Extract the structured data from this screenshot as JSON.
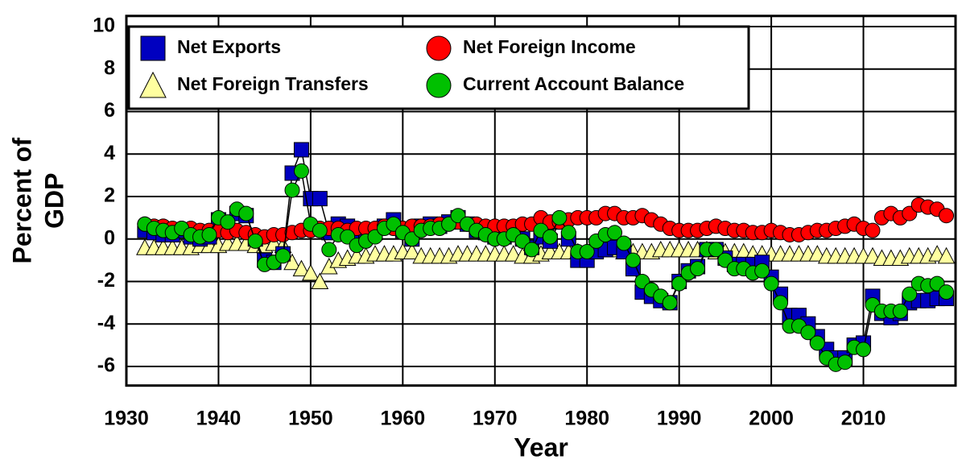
{
  "chart_data": {
    "type": "scatter",
    "xlabel": "Year",
    "ylabel": [
      "Percent of",
      "GDP"
    ],
    "xlim": [
      1930,
      2020
    ],
    "xticks": [
      1930,
      1940,
      1950,
      1960,
      1970,
      1980,
      1990,
      2000,
      2010
    ],
    "ylim": [
      -6.9,
      10.5
    ],
    "yticks": [
      -6,
      -4,
      -2,
      0,
      2,
      4,
      6,
      8,
      10
    ],
    "grid": true,
    "legend": "upper left",
    "x": [
      1932,
      1933,
      1934,
      1935,
      1936,
      1937,
      1938,
      1939,
      1940,
      1941,
      1942,
      1943,
      1944,
      1945,
      1946,
      1947,
      1948,
      1949,
      1950,
      1951,
      1952,
      1953,
      1954,
      1955,
      1956,
      1957,
      1958,
      1959,
      1960,
      1961,
      1962,
      1963,
      1964,
      1965,
      1966,
      1967,
      1968,
      1969,
      1970,
      1971,
      1972,
      1973,
      1974,
      1975,
      1976,
      1977,
      1978,
      1979,
      1980,
      1981,
      1982,
      1983,
      1984,
      1985,
      1986,
      1987,
      1988,
      1989,
      1990,
      1991,
      1992,
      1993,
      1994,
      1995,
      1996,
      1997,
      1998,
      1999,
      2000,
      2001,
      2002,
      2003,
      2004,
      2005,
      2006,
      2007,
      2008,
      2009,
      2010,
      2011,
      2012,
      2013,
      2014,
      2015,
      2016,
      2017,
      2018,
      2019
    ],
    "series": [
      {
        "name": "Net Foreign Transfers",
        "color": "#ffffa0",
        "marker": "triangle",
        "values": [
          -0.4,
          -0.4,
          -0.4,
          -0.4,
          -0.4,
          -0.4,
          -0.3,
          -0.3,
          -0.3,
          -0.2,
          -0.2,
          -0.2,
          -0.3,
          -0.3,
          -0.2,
          -0.3,
          -1.1,
          -1.4,
          -1.6,
          -2.0,
          -1.3,
          -1.0,
          -0.9,
          -0.8,
          -0.8,
          -0.7,
          -0.7,
          -0.7,
          -0.6,
          -0.6,
          -0.8,
          -0.8,
          -0.8,
          -0.8,
          -0.7,
          -0.7,
          -0.7,
          -0.7,
          -0.7,
          -0.7,
          -0.7,
          -0.8,
          -0.8,
          -0.7,
          -0.6,
          -0.6,
          -0.6,
          -0.6,
          -0.6,
          -0.5,
          -0.5,
          -0.5,
          -0.6,
          -0.6,
          -0.6,
          -0.6,
          -0.5,
          -0.5,
          -0.5,
          -0.5,
          -0.5,
          -0.5,
          -0.6,
          -0.6,
          -0.6,
          -0.6,
          -0.7,
          -0.7,
          -0.7,
          -0.7,
          -0.7,
          -0.7,
          -0.7,
          -0.7,
          -0.8,
          -0.8,
          -0.8,
          -0.8,
          -0.8,
          -0.8,
          -0.9,
          -0.9,
          -0.9,
          -0.8,
          -0.8,
          -0.8,
          -0.7,
          -0.8
        ]
      },
      {
        "name": "Net Exports",
        "color": "#0000c0",
        "marker": "square",
        "values": [
          0.4,
          0.3,
          0.2,
          0.2,
          0.4,
          0.1,
          0.0,
          0.1,
          0.9,
          0.7,
          1.2,
          1.1,
          0.0,
          -1.0,
          -1.1,
          -0.7,
          3.1,
          4.2,
          1.9,
          1.9,
          0.3,
          0.7,
          0.6,
          0.0,
          0.2,
          0.3,
          0.6,
          0.9,
          0.4,
          0.0,
          0.6,
          0.7,
          0.6,
          0.8,
          1.0,
          0.7,
          0.4,
          0.3,
          0.1,
          0.1,
          0.3,
          0.0,
          -0.4,
          0.1,
          -0.1,
          0.8,
          0.0,
          -1.0,
          -1.0,
          -0.6,
          -0.5,
          -0.4,
          -0.6,
          -1.4,
          -2.5,
          -2.7,
          -2.9,
          -3.0,
          -2.0,
          -1.5,
          -1.3,
          -0.5,
          -0.5,
          -0.9,
          -1.2,
          -1.2,
          -1.2,
          -1.1,
          -1.8,
          -2.6,
          -3.6,
          -3.6,
          -4.0,
          -4.6,
          -5.2,
          -5.6,
          -5.6,
          -5.0,
          -4.9,
          -2.7,
          -3.5,
          -3.7,
          -3.5,
          -3.0,
          -2.9,
          -2.9,
          -2.8,
          -2.8
        ]
      },
      {
        "name": "Net Foreign Income",
        "color": "#ff0000",
        "marker": "circle",
        "values": [
          0.7,
          0.6,
          0.6,
          0.5,
          0.5,
          0.5,
          0.4,
          0.4,
          0.4,
          0.3,
          0.4,
          0.3,
          0.2,
          0.1,
          0.2,
          0.2,
          0.3,
          0.4,
          0.4,
          0.5,
          0.5,
          0.5,
          0.4,
          0.5,
          0.5,
          0.5,
          0.6,
          0.5,
          0.5,
          0.6,
          0.6,
          0.6,
          0.7,
          0.7,
          0.8,
          0.7,
          0.7,
          0.6,
          0.6,
          0.6,
          0.6,
          0.7,
          0.7,
          1.0,
          0.8,
          0.8,
          0.9,
          1.0,
          1.0,
          1.0,
          1.2,
          1.2,
          1.0,
          1.0,
          1.1,
          0.9,
          0.7,
          0.5,
          0.4,
          0.4,
          0.4,
          0.5,
          0.6,
          0.5,
          0.4,
          0.4,
          0.3,
          0.3,
          0.4,
          0.3,
          0.2,
          0.2,
          0.3,
          0.4,
          0.4,
          0.5,
          0.6,
          0.7,
          0.5,
          0.4,
          1.0,
          1.2,
          1.0,
          1.2,
          1.6,
          1.5,
          1.4,
          1.1
        ]
      },
      {
        "name": "Current Account Balance",
        "color": "#00c000",
        "marker": "circle",
        "values": [
          0.7,
          0.5,
          0.4,
          0.3,
          0.5,
          0.2,
          0.1,
          0.2,
          1.0,
          0.8,
          1.4,
          1.2,
          -0.1,
          -1.2,
          -1.1,
          -0.8,
          2.3,
          3.2,
          0.7,
          0.4,
          -0.5,
          0.2,
          0.1,
          -0.3,
          -0.1,
          0.1,
          0.5,
          0.7,
          0.3,
          0.0,
          0.4,
          0.5,
          0.5,
          0.7,
          1.1,
          0.7,
          0.4,
          0.2,
          0.0,
          0.0,
          0.2,
          -0.1,
          -0.5,
          0.4,
          0.1,
          1.0,
          0.3,
          -0.6,
          -0.6,
          -0.1,
          0.2,
          0.3,
          -0.2,
          -1.0,
          -2.0,
          -2.4,
          -2.7,
          -3.0,
          -2.1,
          -1.6,
          -1.4,
          -0.5,
          -0.5,
          -1.0,
          -1.4,
          -1.4,
          -1.6,
          -1.5,
          -2.1,
          -3.0,
          -4.1,
          -4.1,
          -4.4,
          -4.9,
          -5.6,
          -5.9,
          -5.8,
          -5.1,
          -5.2,
          -3.1,
          -3.4,
          -3.4,
          -3.4,
          -2.6,
          -2.1,
          -2.2,
          -2.1,
          -2.5
        ]
      }
    ]
  }
}
